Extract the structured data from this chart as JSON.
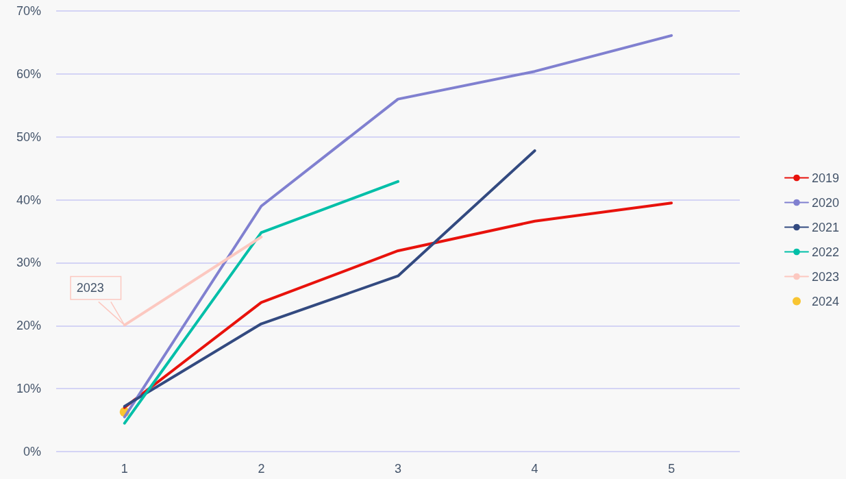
{
  "chart_data": {
    "type": "line",
    "categories": [
      "1",
      "2",
      "3",
      "4",
      "5"
    ],
    "series": [
      {
        "name": "2019",
        "color": "#e8120c",
        "values": [
          7.0,
          23.7,
          31.9,
          36.6,
          39.5
        ]
      },
      {
        "name": "2020",
        "color": "#8080d0",
        "values": [
          5.5,
          39.0,
          56.0,
          60.4,
          66.1
        ]
      },
      {
        "name": "2021",
        "color": "#334a80",
        "values": [
          7.2,
          20.3,
          27.9,
          47.8,
          null
        ]
      },
      {
        "name": "2022",
        "color": "#00bfa8",
        "values": [
          4.5,
          34.8,
          42.9,
          null,
          null
        ]
      },
      {
        "name": "2023",
        "color": "#fcc8c0",
        "values": [
          20.1,
          34.1,
          null,
          null,
          null
        ]
      },
      {
        "name": "2024",
        "color": "#f8b800",
        "type": "scatter",
        "marker": "circle",
        "values": [
          6.3,
          null,
          null,
          null,
          null
        ]
      }
    ],
    "annotations": [
      {
        "text": "2023",
        "x": "1",
        "y": 20.1
      }
    ],
    "ylim": [
      0,
      70
    ],
    "yticks": [
      {
        "value": 0,
        "label": "0%"
      },
      {
        "value": 10,
        "label": "10%"
      },
      {
        "value": 20,
        "label": "20%"
      },
      {
        "value": 30,
        "label": "30%"
      },
      {
        "value": 40,
        "label": "40%"
      },
      {
        "value": 50,
        "label": "50%"
      },
      {
        "value": 60,
        "label": "60%"
      },
      {
        "value": 70,
        "label": "70%"
      }
    ],
    "grid": "y",
    "legend": "right",
    "marker": "none",
    "line_style": "solid"
  }
}
